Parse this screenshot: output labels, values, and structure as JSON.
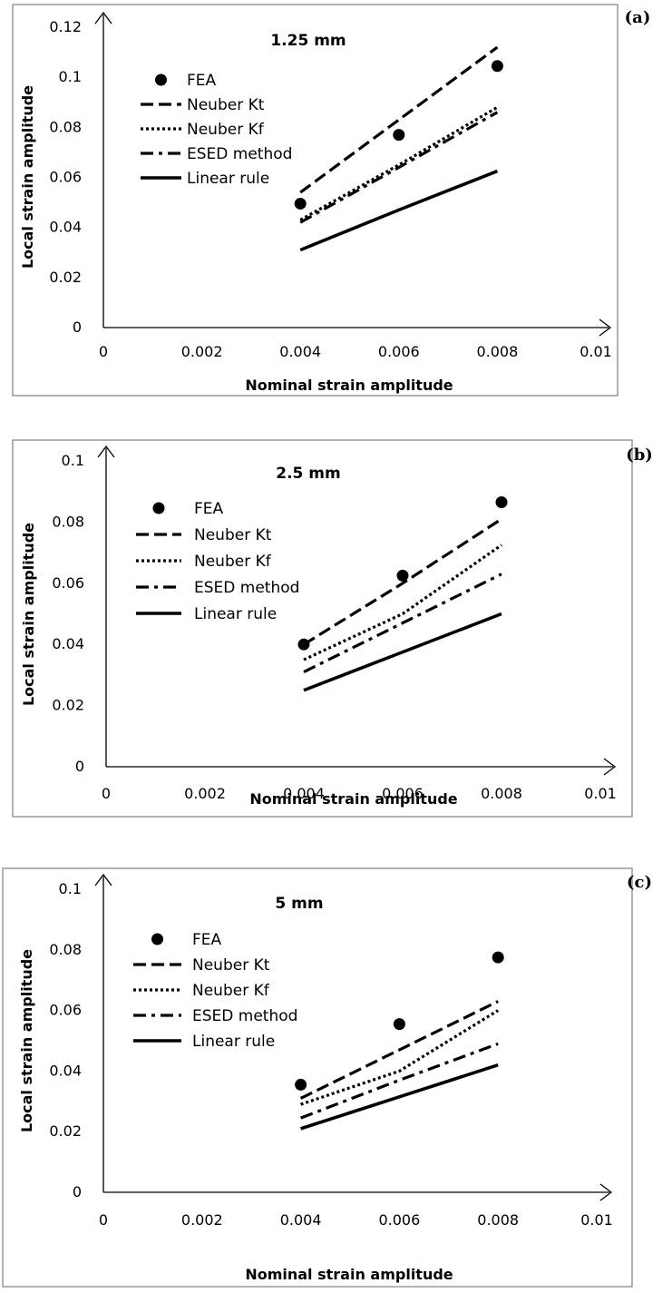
{
  "chart_data": [
    {
      "type": "line",
      "panel_label": "(a)",
      "title": "1.25 mm",
      "xlabel": "Nominal strain amplitude",
      "ylabel": "Local strain amplitude",
      "xlim": [
        0,
        0.01
      ],
      "ylim": [
        0,
        0.12
      ],
      "x_ticks": [
        "0",
        "0.002",
        "0.004",
        "0.006",
        "0.008",
        "0.01"
      ],
      "y_ticks": [
        "0",
        "0.02",
        "0.04",
        "0.06",
        "0.08",
        "0.1",
        "0.12"
      ],
      "x": [
        0.004,
        0.006,
        0.008
      ],
      "legend_position": "top-left",
      "series": [
        {
          "name": "FEA",
          "style": "marker",
          "values": [
            0.0495,
            0.077,
            0.1045
          ]
        },
        {
          "name": "Neuber Kt",
          "style": "dashed",
          "values": [
            0.054,
            0.083,
            0.112
          ]
        },
        {
          "name": "Neuber Kf",
          "style": "dotted",
          "values": [
            0.043,
            0.065,
            0.088
          ]
        },
        {
          "name": "ESED method",
          "style": "dashdot",
          "values": [
            0.042,
            0.064,
            0.086
          ]
        },
        {
          "name": "Linear rule",
          "style": "solid",
          "values": [
            0.031,
            0.047,
            0.0625
          ]
        }
      ]
    },
    {
      "type": "line",
      "panel_label": "(b)",
      "title": "2.5 mm",
      "xlabel": "Nominal strain amplitude",
      "ylabel": "Local strain amplitude",
      "xlim": [
        0,
        0.01
      ],
      "ylim": [
        0,
        0.1
      ],
      "x_ticks": [
        "0",
        "0.002",
        "0.004",
        "0.006",
        "0.008",
        "0.01"
      ],
      "y_ticks": [
        "0",
        "0.02",
        "0.04",
        "0.06",
        "0.08",
        "0.1"
      ],
      "x": [
        0.004,
        0.006,
        0.008
      ],
      "legend_position": "top-left",
      "series": [
        {
          "name": "FEA",
          "style": "marker",
          "values": [
            0.04,
            0.0625,
            0.0865
          ]
        },
        {
          "name": "Neuber Kt",
          "style": "dashed",
          "values": [
            0.04,
            0.06,
            0.081
          ]
        },
        {
          "name": "Neuber Kf",
          "style": "dotted",
          "values": [
            0.035,
            0.05,
            0.0725
          ]
        },
        {
          "name": "ESED method",
          "style": "dashdot",
          "values": [
            0.031,
            0.047,
            0.063
          ]
        },
        {
          "name": "Linear rule",
          "style": "solid",
          "values": [
            0.025,
            0.0375,
            0.05
          ]
        }
      ]
    },
    {
      "type": "line",
      "panel_label": "(c)",
      "title": "5 mm",
      "xlabel": "Nominal strain amplitude",
      "ylabel": "Local strain amplitude",
      "xlim": [
        0,
        0.01
      ],
      "ylim": [
        0,
        0.1
      ],
      "x_ticks": [
        "0",
        "0.002",
        "0.004",
        "0.006",
        "0.008",
        "0.01"
      ],
      "y_ticks": [
        "0",
        "0.02",
        "0.04",
        "0.06",
        "0.08",
        "0.1"
      ],
      "x": [
        0.004,
        0.006,
        0.008
      ],
      "legend_position": "top-left",
      "series": [
        {
          "name": "FEA",
          "style": "marker",
          "values": [
            0.0355,
            0.0555,
            0.0775
          ]
        },
        {
          "name": "Neuber Kt",
          "style": "dashed",
          "values": [
            0.031,
            0.047,
            0.063
          ]
        },
        {
          "name": "Neuber Kf",
          "style": "dotted",
          "values": [
            0.029,
            0.04,
            0.06
          ]
        },
        {
          "name": "ESED method",
          "style": "dashdot",
          "values": [
            0.0245,
            0.037,
            0.049
          ]
        },
        {
          "name": "Linear rule",
          "style": "solid",
          "values": [
            0.021,
            0.0315,
            0.042
          ]
        }
      ]
    }
  ]
}
